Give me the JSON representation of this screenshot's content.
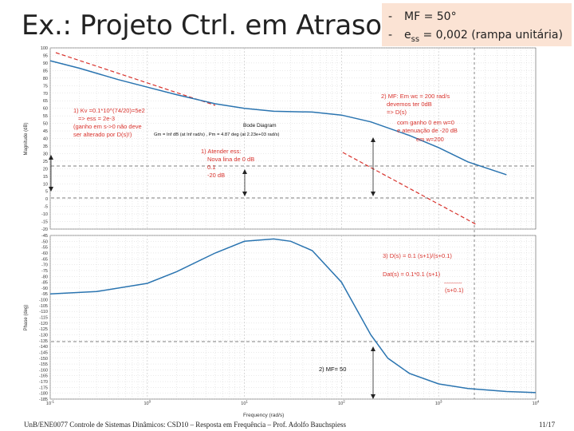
{
  "slide": {
    "title": "Ex.: Projeto Ctrl. em Atraso",
    "specs": [
      {
        "dash": "-",
        "text": "MF = 50°"
      },
      {
        "dash": "-",
        "symbol": "e",
        "subscript": "ss",
        "text": " = 0,002 (rampa unitária)"
      }
    ],
    "footer": "UnB/ENE0077 Controle de Sistemas Dinâmicos: CSD10 – Resposta em Frequência – Prof. Adolfo Bauchspiess",
    "page": "11/17"
  },
  "colors": {
    "curve": "#2a74b0",
    "annotation": "#d8322c",
    "guide": "#555555",
    "grid": "#c9c9c9"
  },
  "chart_data": [
    {
      "type": "line",
      "title": "Bode Diagram",
      "subtitle": "Gm = Inf dB (at Inf rad/s) ,  Pm = 4.87 deg (at 2.23e+03 rad/s)",
      "xlabel": "",
      "ylabel": "Magnitude (dB)",
      "xscale": "log",
      "xlim": [
        0.1,
        10000
      ],
      "ylim": [
        -20,
        100
      ],
      "yticks": [
        100,
        95,
        90,
        85,
        80,
        75,
        70,
        65,
        60,
        55,
        50,
        45,
        40,
        35,
        30,
        25,
        20,
        15,
        10,
        5,
        0,
        -5,
        -10,
        -15,
        -20
      ],
      "grid": true,
      "series": [
        {
          "name": "",
          "x": [
            0.1,
            0.2,
            0.5,
            1,
            2,
            5,
            10,
            20,
            50,
            100,
            200,
            500,
            1000,
            2000,
            5000
          ],
          "y": [
            91.5,
            86.5,
            79,
            74,
            69,
            63,
            60,
            58,
            57.5,
            55.5,
            51,
            42,
            34,
            24.5,
            16
          ]
        }
      ],
      "annotations": [
        {
          "lines": [
            "1) Kv =0.1*10^(74/20)=5e2",
            "=> ess = 2e-3",
            "(ganho em s->0 não deve",
            "ser alterado por D(s)!)"
          ]
        },
        {
          "lines": [
            "1) Atender ess:",
            "Nova lina de 0 dB",
            "0.1",
            "-20 dB"
          ]
        },
        {
          "lines": [
            "2) MF: Em wc = 200 rad/s",
            "devemos ter 0dB",
            "=> D(s)",
            "com ganho 0 em w=0",
            "e atenuação de -20 dB",
            "em w=200"
          ]
        }
      ]
    },
    {
      "type": "line",
      "xlabel": "Frequency  (rad/s)",
      "ylabel": "Phase (deg)",
      "xscale": "log",
      "xlim": [
        0.1,
        10000
      ],
      "ylim": [
        -185,
        -45
      ],
      "xticks": [
        "10^-1",
        "10^0",
        "10^1",
        "10^2",
        "10^3",
        "10^4"
      ],
      "yticks": [
        -45,
        -50,
        -55,
        -60,
        -65,
        -70,
        -75,
        -80,
        -85,
        -90,
        -95,
        -100,
        -105,
        -110,
        -115,
        -120,
        -125,
        -130,
        -135,
        -140,
        -145,
        -150,
        -155,
        -160,
        -165,
        -170,
        -175,
        -180,
        -185
      ],
      "grid": true,
      "series": [
        {
          "name": "",
          "x": [
            0.1,
            0.3,
            1,
            2,
            5,
            10,
            20,
            30,
            50,
            100,
            200,
            300,
            500,
            1000,
            2000,
            5000,
            10000
          ],
          "y": [
            -95,
            -93,
            -86,
            -76,
            -60,
            -50,
            -48,
            -50,
            -58,
            -85,
            -130,
            -150,
            -163,
            -172,
            -176,
            -178.5,
            -179.5
          ]
        }
      ],
      "annotations": [
        {
          "lines": [
            "3) D(s) = 0.1 (s+1)/(s+0.1)"
          ]
        },
        {
          "lines": [
            "Dat(s) = 0.1*0.1   (s+1)",
            "---------",
            "(s+0.1)"
          ]
        },
        {
          "lines": [
            "2) MF= 50"
          ]
        }
      ]
    }
  ]
}
